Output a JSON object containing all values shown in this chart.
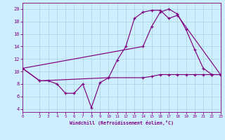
{
  "xlabel": "Windchill (Refroidissement éolien,°C)",
  "background_color": "#cceeff",
  "grid_color": "#aad4d4",
  "line_color": "#800080",
  "xlim": [
    0,
    23
  ],
  "ylim": [
    3.5,
    21
  ],
  "yticks": [
    4,
    6,
    8,
    10,
    12,
    14,
    16,
    18,
    20
  ],
  "xticks": [
    0,
    2,
    3,
    4,
    5,
    6,
    7,
    8,
    9,
    10,
    11,
    12,
    13,
    14,
    15,
    16,
    17,
    18,
    19,
    20,
    21,
    22,
    23
  ],
  "curve1_x": [
    0,
    2,
    3,
    4,
    5,
    6,
    7,
    8,
    9,
    10,
    11,
    12,
    13,
    14,
    15,
    16,
    17,
    18,
    23
  ],
  "curve1_y": [
    10.5,
    8.5,
    8.5,
    8.0,
    6.5,
    6.5,
    8.0,
    4.2,
    8.2,
    9.0,
    11.8,
    14.0,
    18.5,
    19.5,
    19.8,
    19.8,
    18.5,
    19.0,
    9.5
  ],
  "curve2_x": [
    0,
    14,
    15,
    16,
    17,
    18,
    19,
    20,
    21,
    22,
    23
  ],
  "curve2_y": [
    10.5,
    14.0,
    17.2,
    19.5,
    20.0,
    19.2,
    16.7,
    13.5,
    10.5,
    9.5,
    9.5
  ],
  "curve3_x": [
    0,
    2,
    10,
    14,
    15,
    16,
    17,
    18,
    19,
    20,
    21,
    22,
    23
  ],
  "curve3_y": [
    10.5,
    8.5,
    9.0,
    9.0,
    9.2,
    9.5,
    9.5,
    9.5,
    9.5,
    9.5,
    9.5,
    9.5,
    9.5
  ]
}
